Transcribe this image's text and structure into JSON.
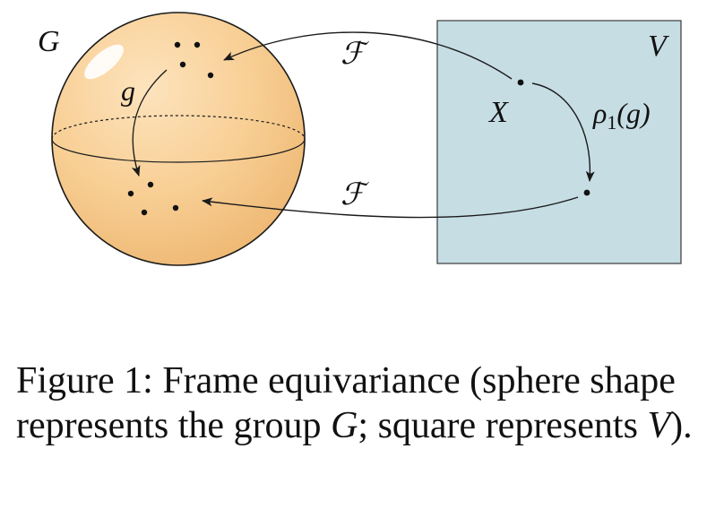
{
  "diagram": {
    "group_label": "G",
    "space_label": "V",
    "input_label": "X",
    "frame_map_label_top": "ℱ",
    "frame_map_label_bottom": "ℱ",
    "group_action_label": "g",
    "representation_label_rho": "ρ",
    "representation_label_sub": "1",
    "representation_label_arg": "(g)",
    "colors": {
      "sphere_fill": "#f8cf95",
      "sphere_edge": "#1a1a1a",
      "square_fill": "#c6dde4",
      "square_edge": "#3a3a3a",
      "arrow": "#1a1a1a",
      "dot": "#111111"
    }
  },
  "caption": {
    "prefix": "Figure 1: Frame equivariance (sphere shape represents the group ",
    "group_symbol": "G",
    "middle": "; square represents ",
    "space_symbol": "V",
    "suffix": ")."
  }
}
